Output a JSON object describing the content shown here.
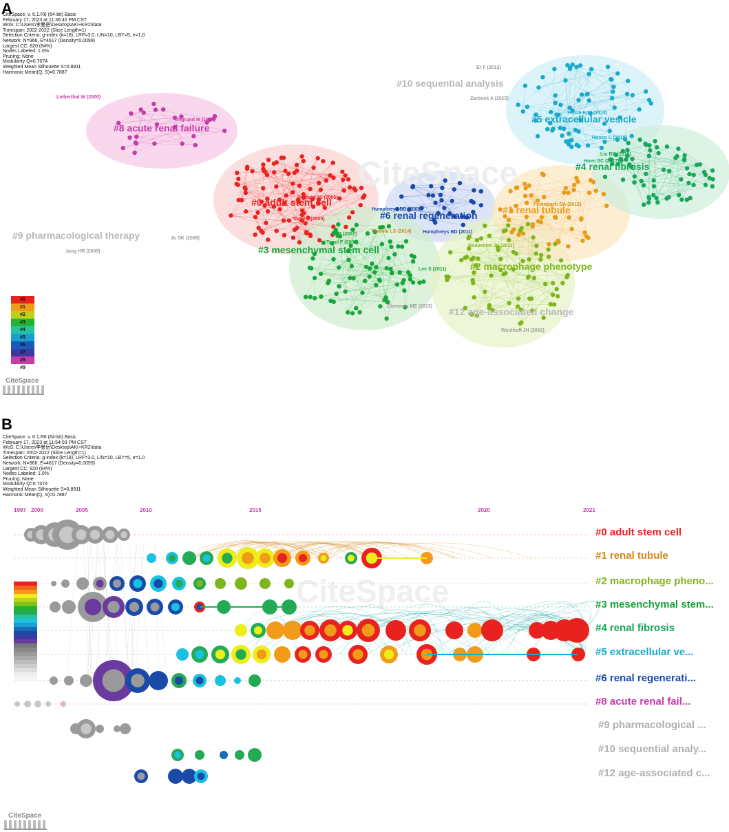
{
  "panels": {
    "a_letter": "A",
    "b_letter": "B"
  },
  "meta_a": [
    "CiteSpace, v. 6.1.R6 (64-bit) Basic",
    "February 17, 2023 at 11:36:40 PM CST",
    "WoS: C:\\Users\\李曼岳\\Desktop\\AKI+KR2\\data",
    "Timespan: 2002-2022 (Slice Length=1)",
    "Selection Criteria: g-index (k=18), LRF=3.0, L/N=10, LBY=5, e=1.0",
    "Network: N=966, E=4617 (Density=0.0099)",
    "Largest CC: 820 (84%)",
    "Nodes Labeled: 1.0%",
    "Pruning: None",
    "Modularity Q=0.7074",
    "Weighted Mean Silhouette S=0.8911",
    "Harmonic Mean(Q, S)=0.7887"
  ],
  "meta_b": [
    "CiteSpace, v. 6.1.R6 (64-bit) Basic",
    "February 17, 2023 at 11:54:03 PM CST",
    "WoS: C:\\Users\\李曼岳\\Desktop\\AKI+KR2\\data",
    "Timespan: 2002-2022 (Slice Length=1)",
    "Selection Criteria: g-index (k=18), LRF=3.0, L/N=10, LBY=5, e=1.0",
    "Network: N=966, E=4617 (Density=0.0099)",
    "Largest CC: 820 (84%)",
    "Nodes Labeled: 1.0%",
    "Pruning: None",
    "Modularity Q=0.7074",
    "Weighted Mean Silhouette S=0.8911",
    "Harmonic Mean(Q, S)=0.7887"
  ],
  "clusters_a": [
    {
      "label": "#0 adult stem cell",
      "color": "#e8231f"
    },
    {
      "label": "#1 renal tubule",
      "color": "#e89a1a"
    },
    {
      "label": "#2 macrophage phenotype",
      "color": "#7fb51c"
    },
    {
      "label": "#3 mesenchymal stem cell",
      "color": "#17a63a"
    },
    {
      "label": "#4 renal fibrosis",
      "color": "#17a65a"
    },
    {
      "label": "#5 extracellular vesicle",
      "color": "#19a9c9"
    },
    {
      "label": "#6 renal regeneration",
      "color": "#1a4aa8"
    },
    {
      "label": "#8 acute renal failure",
      "color": "#c43ca8"
    },
    {
      "label": "#9 pharmacological therapy",
      "color": "#b8b8b8"
    },
    {
      "label": "#10 sequential analysis",
      "color": "#b8b8b8"
    },
    {
      "label": "#12 age-associated change",
      "color": "#b8b8b8"
    }
  ],
  "authors_a": [
    {
      "text": "Er F (2012)"
    },
    {
      "text": "Zarbock A (2015)"
    },
    {
      "text": "Lieberthal W (2000)"
    },
    {
      "text": "Imgrund M (1999)"
    },
    {
      "text": "Hoste EAJ (2018)"
    },
    {
      "text": "Ronco C (2019)"
    },
    {
      "text": "Liu BC (2018)"
    },
    {
      "text": "Huen SC (2017)"
    },
    {
      "text": "Duffield JS (2005)"
    },
    {
      "text": "Togel F (2005)"
    },
    {
      "text": "Humphreys BD (2008)"
    },
    {
      "text": "Humphreys BD (2011)"
    },
    {
      "text": "Ferenbach DA (2015)"
    },
    {
      "text": "Jo SK (2006)"
    },
    {
      "text": "Jang HR (2009)"
    },
    {
      "text": "Bi B (2007)"
    },
    {
      "text": "Togel F (2007)"
    },
    {
      "text": "Chawla LS (2014)"
    },
    {
      "text": "Bonventre JV (2011)"
    },
    {
      "text": "Lee S (2011)"
    },
    {
      "text": "Clements ME (2013)"
    },
    {
      "text": "Westhoff JH (2010)"
    }
  ],
  "legend_a": [
    "#0",
    "#1",
    "#2",
    "#3",
    "#4",
    "#5",
    "#6",
    "#7",
    "#8",
    "#9"
  ],
  "logo": "CiteSpace",
  "watermark": "CiteSpace",
  "timeline_years": [
    "1997",
    "2000",
    "2005",
    "2010",
    "2015",
    "2020",
    "2021"
  ],
  "timeline_labels": [
    {
      "text": "#0 adult stem cell",
      "color": "#e8231f"
    },
    {
      "text": "#1 renal tubule",
      "color": "#d4861a"
    },
    {
      "text": "#2 macrophage pheno...",
      "color": "#7fb51c"
    },
    {
      "text": "#3 mesenchymal stem...",
      "color": "#17a63a"
    },
    {
      "text": "#4 renal fibrosis",
      "color": "#17a65a"
    },
    {
      "text": "#5 extracellular ve...",
      "color": "#19a9c9"
    },
    {
      "text": "#6 renal regenerati...",
      "color": "#1a4aa8"
    },
    {
      "text": "#8 acute renal fail...",
      "color": "#c43ca8"
    },
    {
      "text": "#9 pharmacological ...",
      "color": "#b0b0b0"
    },
    {
      "text": "#10 sequential analy...",
      "color": "#b0b0b0"
    },
    {
      "text": "#12 age-associated c...",
      "color": "#b0b0b0"
    }
  ]
}
